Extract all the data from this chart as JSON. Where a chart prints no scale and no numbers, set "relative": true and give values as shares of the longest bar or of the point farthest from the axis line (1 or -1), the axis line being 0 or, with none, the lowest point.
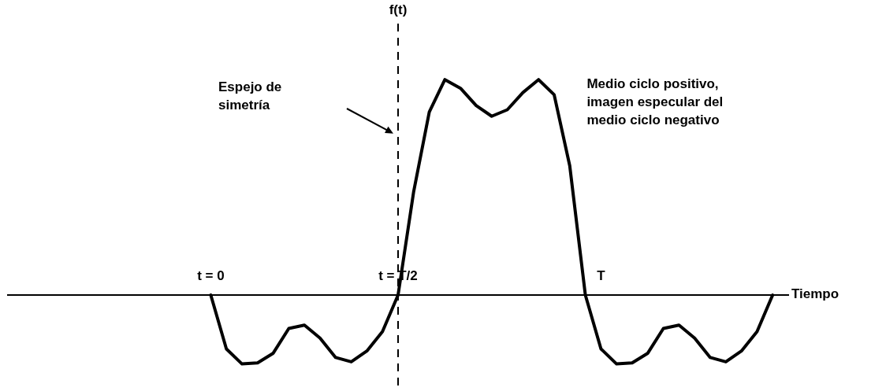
{
  "chart_data": {
    "type": "line",
    "relative": true,
    "marker": "none",
    "tick_labels": "x",
    "categories": [
      null,
      null,
      null,
      null,
      null,
      null,
      null,
      null,
      null,
      null,
      null,
      null,
      null,
      "t = 0",
      null,
      null,
      null,
      null,
      null,
      null,
      null,
      null,
      null,
      null,
      null,
      "t = T/2",
      null,
      null,
      null,
      null,
      null,
      null,
      null,
      null,
      null,
      null,
      null,
      null,
      "T",
      null,
      null,
      null,
      null,
      null,
      null,
      null,
      null,
      null,
      null,
      null,
      null
    ],
    "series": [
      {
        "color": "#000000",
        "values": [
          null,
          null,
          null,
          null,
          null,
          null,
          null,
          null,
          null,
          null,
          null,
          null,
          null,
          0,
          -0.25,
          -0.32,
          -0.315,
          -0.27,
          -0.155,
          -0.14,
          -0.2,
          -0.29,
          -0.31,
          -0.26,
          -0.17,
          0,
          0.48,
          0.85,
          1,
          0.96,
          0.88,
          0.83,
          0.86,
          0.94,
          1,
          0.93,
          0.6,
          0,
          -0.25,
          -0.32,
          -0.315,
          -0.27,
          -0.155,
          -0.14,
          -0.2,
          -0.29,
          -0.31,
          -0.26,
          -0.17,
          0,
          null
        ]
      }
    ],
    "xlabel": "Tiempo",
    "ref_lines": [
      {
        "axis": "x",
        "value": "t = T/2",
        "label": "f(t)",
        "line_style": "dashed",
        "color": "#000000"
      }
    ],
    "annotations": [
      "Espejo de simetría",
      "Medio ciclo positivo, imagen especular del medio ciclo negativo"
    ]
  }
}
